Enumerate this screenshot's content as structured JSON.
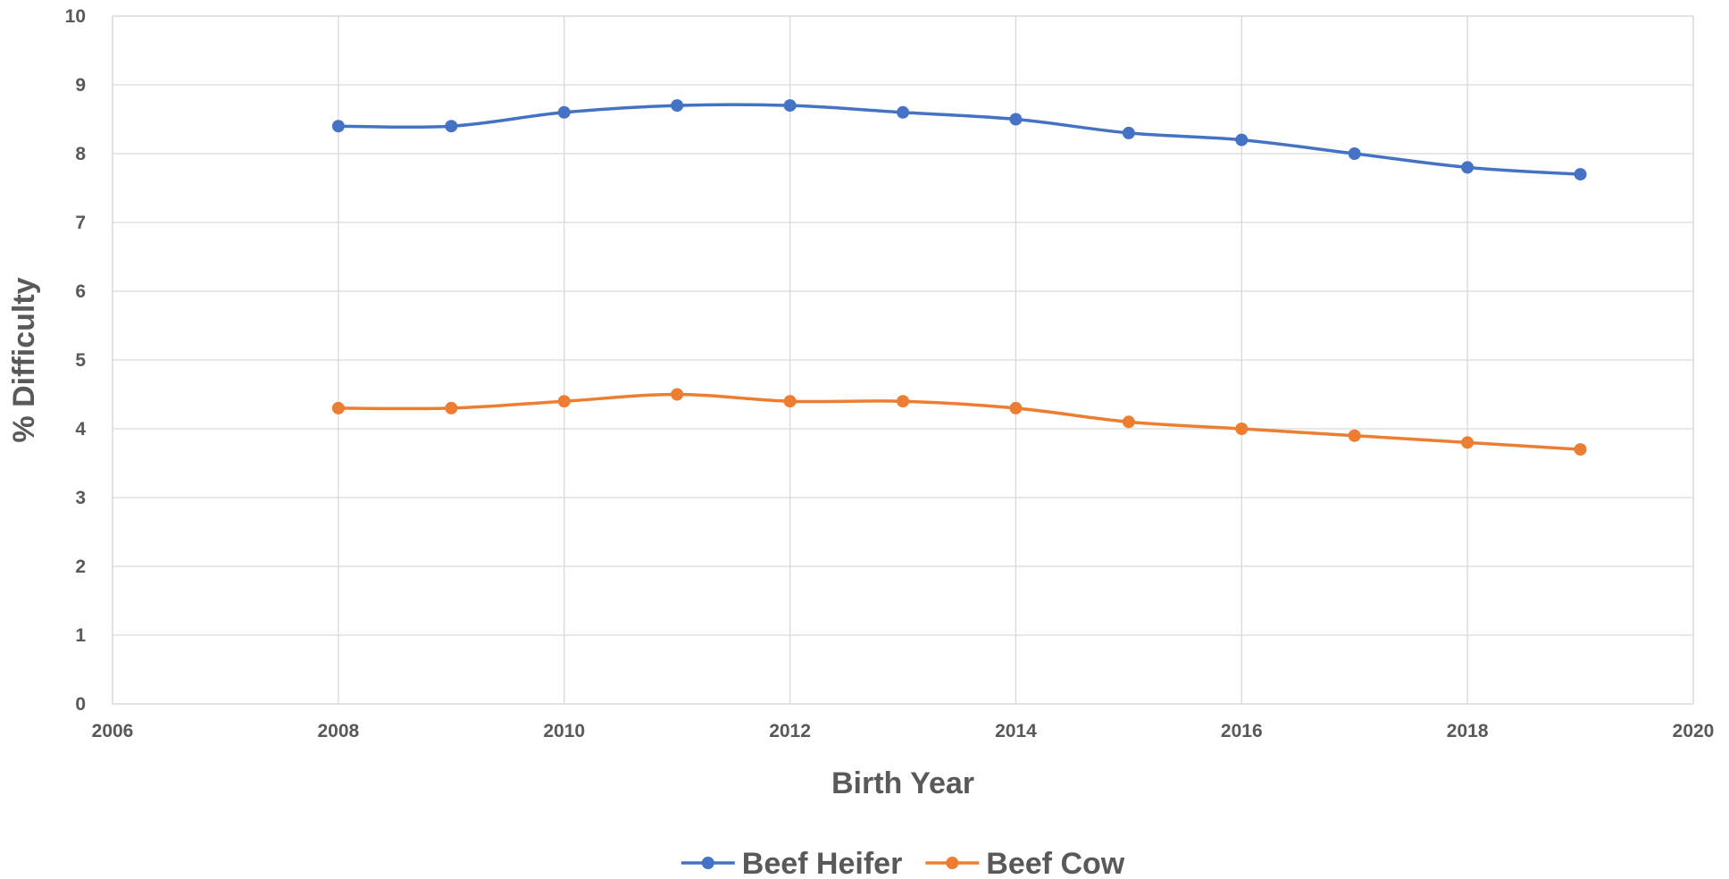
{
  "chart_data": {
    "type": "line",
    "xlabel": "Birth Year",
    "ylabel": "% Difficulty",
    "xlim": [
      2006,
      2020
    ],
    "ylim": [
      0,
      10
    ],
    "xticks": [
      2006,
      2008,
      2010,
      2012,
      2014,
      2016,
      2018,
      2020
    ],
    "yticks": [
      0,
      1,
      2,
      3,
      4,
      5,
      6,
      7,
      8,
      9,
      10
    ],
    "x": [
      2008,
      2009,
      2010,
      2011,
      2012,
      2013,
      2014,
      2015,
      2016,
      2017,
      2018,
      2019
    ],
    "series": [
      {
        "name": "Beef Heifer",
        "color": "#4472c4",
        "values": [
          8.4,
          8.4,
          8.6,
          8.7,
          8.7,
          8.6,
          8.5,
          8.3,
          8.2,
          8.0,
          7.8,
          7.7
        ]
      },
      {
        "name": "Beef Cow",
        "color": "#ed7d31",
        "values": [
          4.3,
          4.3,
          4.4,
          4.5,
          4.4,
          4.4,
          4.3,
          4.1,
          4.0,
          3.9,
          3.8,
          3.7
        ]
      }
    ],
    "smoothed": true,
    "markers": "circle",
    "grid": "both",
    "legend_position": "bottom"
  }
}
